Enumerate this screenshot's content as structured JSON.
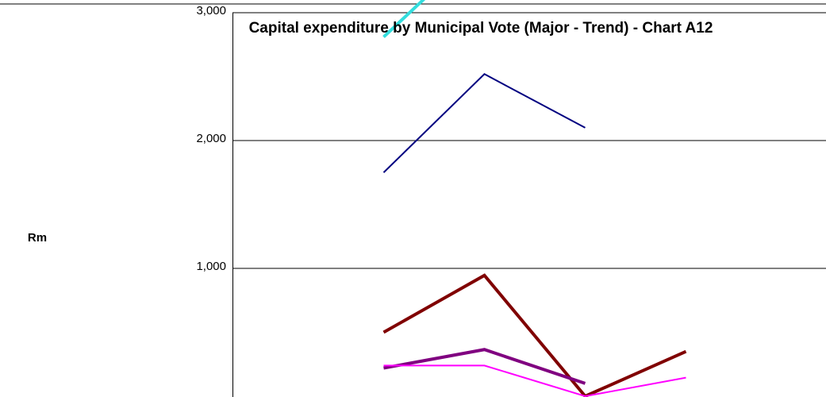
{
  "chart_data": {
    "type": "line",
    "title": "Capital expenditure by Municipal Vote (Major - Trend) - Chart A12",
    "y_label": "Rm",
    "categories": [
      null,
      null,
      null,
      null,
      null,
      null
    ],
    "series": [
      {
        "color": "#000080",
        "width": 2,
        "values": [
          null,
          1750,
          2520,
          2100,
          null,
          null
        ]
      },
      {
        "color": "#800000",
        "width": 4,
        "values": [
          null,
          500,
          945,
          0,
          350,
          null
        ]
      },
      {
        "color": "#800080",
        "width": 4,
        "values": [
          null,
          220,
          365,
          100,
          null,
          null
        ]
      },
      {
        "color": "#ff00ff",
        "width": 2,
        "values": [
          null,
          240,
          240,
          0,
          145,
          null
        ]
      },
      {
        "color": "#33dddd",
        "width": 4,
        "values": [
          null,
          2810,
          3550,
          null,
          null,
          null
        ]
      }
    ],
    "ylim": [
      0,
      3000
    ],
    "yticks": [
      {
        "value": 1000,
        "label": "1,000"
      },
      {
        "value": 2000,
        "label": "2,000"
      },
      {
        "value": 3000,
        "label": "3,000"
      }
    ],
    "grid": true
  }
}
